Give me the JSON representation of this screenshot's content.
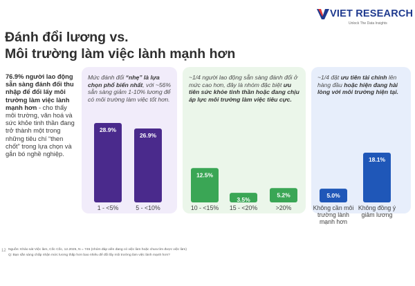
{
  "brand": {
    "name": "VIET RESEARCH",
    "tagline": "Unlock The Data Insights",
    "color": "#1f3a8f"
  },
  "title": {
    "line1": "Đánh đổi lương vs.",
    "line2": "Môi trường làm việc lành mạnh hơn"
  },
  "summary": {
    "highlight": "76.9% người lao động sẵn sàng đánh đổi thu nhập để đổi lấy môi trường làm việc lành mạnh hơn",
    "body": " - cho thấy môi trường, văn hoá và sức khỏe tinh thần đang trở thành một trong những tiêu chí “then chốt” trong lựa chọn và gắn bó nghề nghiệp."
  },
  "panels": [
    {
      "note_pre": "Mức đánh đổi ",
      "note_bold": "“nhẹ” là lựa chọn phổ biến nhất",
      "note_post": ", với ~56% sẵn sàng giảm 1-10% lương để có môi trường làm việc tốt hơn.",
      "background": "#f1ecfa"
    },
    {
      "note_pre": "~1/4 người lao động sẵn sàng đánh đổi ở mức cao hơn, đây là nhóm đặc biệt ",
      "note_bold": "ưu tiên sức khỏe tinh thần hoặc đang chịu áp lực môi trường làm việc tiêu cực.",
      "note_post": "",
      "background": "#ebf6ea"
    },
    {
      "note_pre": "~1/4 đặt ",
      "note_bold_a": "ưu tiên tài chính",
      "note_mid": " lên hàng đầu ",
      "note_bold": "hoặc hiện đang hài lòng với môi trường hiện tại.",
      "background": "#e7eefb"
    }
  ],
  "chart_data": {
    "type": "bar",
    "unit": "%",
    "ylim": [
      0,
      30
    ],
    "categories": [
      "1 - <5%",
      "5 - <10%",
      "10 - <15%",
      "15 - <20%",
      ">20%",
      "Không cần môi trường lành mạnh hơn",
      "Không đồng ý giảm lương"
    ],
    "values": [
      28.9,
      26.9,
      12.5,
      3.5,
      5.2,
      5.0,
      18.1
    ],
    "value_labels": [
      "28.9%",
      "26.9%",
      "12.5%",
      "3.5%",
      "5.2%",
      "5.0%",
      "18.1%"
    ],
    "groups": [
      {
        "categories": [
          "1 - <5%",
          "5 - <10%"
        ],
        "color": "#4a2a8c"
      },
      {
        "categories": [
          "10 - <15%",
          "15 - <20%",
          ">20%"
        ],
        "color": "#3aa655"
      },
      {
        "categories": [
          "Không cần môi trường lành mạnh hơn",
          "Không đồng ý giảm lương"
        ],
        "color": "#1f57b8"
      }
    ],
    "category_label_lines": [
      [
        "1 - <5%"
      ],
      [
        "5 - <10%"
      ],
      [
        "10 - <15%"
      ],
      [
        "15 - <20%"
      ],
      [
        ">20%"
      ],
      [
        "Không cần môi",
        "trường lành",
        "mạnh hơn"
      ],
      [
        "Không đồng ý",
        "giảm lương"
      ]
    ]
  },
  "footnote": {
    "source": "Nguồn: Khảo sát Việc làm, Cốc Cốc, 12.2025, N = 745 (nhóm đáp viên đang có việc làm hoặc chưa tìm được việc làm)",
    "question": "Q: Bạn sẵn sàng chấp nhận mức lương thấp hơn bao nhiêu để đổi lấy môi trường làm việc lành mạnh hơn?"
  },
  "page_number": "12"
}
